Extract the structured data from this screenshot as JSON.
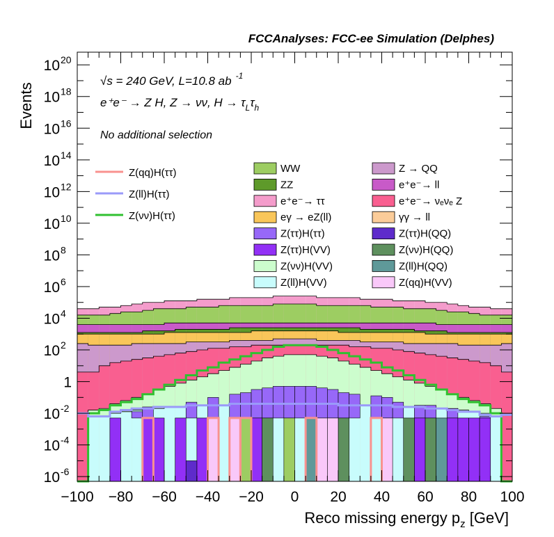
{
  "header": {
    "title": "FCCAnalyses: FCC-ee Simulation (Delphes)",
    "energy": "√s = 240 GeV, L=10.8 ab",
    "lumi_exp": "-1",
    "process": "e⁺e⁻ → Z H, Z → νν, H → τ",
    "process_sub1": "L",
    "process_mid": "τ",
    "process_sub2": "h",
    "selection": "No additional selection"
  },
  "colors": {
    "WW": "#9dcd62",
    "ZZ": "#5e9a2a",
    "ee_tautau": "#f49ccb",
    "egamma_eZll": "#f9c65a",
    "ZtautauHtautau": "#9768f8",
    "ZtautauHVV": "#9230f6",
    "ZnunuHVV": "#ccfdcd",
    "ZllHVV": "#c8fcfc",
    "Z_QQ": "#cc99cc",
    "ee_ll": "#c85ac8",
    "ee_nunuZ": "#f95f90",
    "gammagamma_ll": "#fbcc99",
    "ZtautauHQQ": "#5e2bcb",
    "ZnunuHQQ": "#5e905e",
    "ZllHQQ": "#5f9999",
    "ZqqHVV": "#f9c8f9",
    "sig_qq": "#f9928f",
    "sig_ll": "#9a9af9",
    "sig_nunu": "#30c030"
  },
  "chart_data": {
    "type": "area",
    "title": "FCCAnalyses: FCC-ee Simulation (Delphes)",
    "xlabel": "Reco missing energy p",
    "xlabel_sub": "z",
    "xlabel_unit": " [GeV]",
    "ylabel": "Events",
    "xlim": [
      -100,
      100
    ],
    "ylim_log10": [
      -6.3,
      20.8
    ],
    "y_scale": "log",
    "x_ticks": [
      "−100",
      "−80",
      "−60",
      "−40",
      "−20",
      "0",
      "20",
      "40",
      "60",
      "80",
      "100"
    ],
    "y_ticks": [
      {
        "base": "10",
        "exp": "20",
        "v": 20
      },
      {
        "base": "10",
        "exp": "18",
        "v": 18
      },
      {
        "base": "10",
        "exp": "16",
        "v": 16
      },
      {
        "base": "10",
        "exp": "14",
        "v": 14
      },
      {
        "base": "10",
        "exp": "12",
        "v": 12
      },
      {
        "base": "10",
        "exp": "10",
        "v": 10
      },
      {
        "base": "10",
        "exp": "8",
        "v": 8
      },
      {
        "base": "10",
        "exp": "6",
        "v": 6
      },
      {
        "base": "10",
        "exp": "4",
        "v": 4
      },
      {
        "base": "10",
        "exp": "2",
        "v": 2
      },
      {
        "base": "1",
        "exp": "",
        "v": 0
      },
      {
        "base": "10",
        "exp": "-2",
        "v": -2
      },
      {
        "base": "10",
        "exp": "-4",
        "v": -4
      },
      {
        "base": "10",
        "exp": "-6",
        "v": -6
      }
    ],
    "bin_edges": [
      -100,
      -95,
      -90,
      -85,
      -80,
      -75,
      -70,
      -65,
      -60,
      -55,
      -50,
      -45,
      -40,
      -35,
      -30,
      -25,
      -20,
      -15,
      -10,
      -5,
      0,
      5,
      10,
      15,
      20,
      25,
      30,
      35,
      40,
      45,
      50,
      55,
      60,
      65,
      70,
      75,
      80,
      85,
      90,
      95,
      100
    ],
    "stack_log10": [
      {
        "name": "ZllHVV",
        "color": "#c8fcfc",
        "tops": [
          -6.3,
          -2.2,
          -2.2,
          -2.0,
          -1.9,
          -1.8,
          -1.7,
          -1.7,
          -1.6,
          -1.6,
          -1.6,
          -1.5,
          -1.5,
          -1.5,
          -1.5,
          -1.4,
          -1.4,
          -1.4,
          -1.4,
          -1.4,
          -1.4,
          -1.4,
          -1.4,
          -1.4,
          -1.4,
          -1.4,
          -1.5,
          -1.5,
          -1.5,
          -1.5,
          -1.6,
          -1.6,
          -1.6,
          -1.7,
          -1.7,
          -1.8,
          -1.9,
          -2.0,
          -2.2,
          -6.3
        ]
      },
      {
        "name": "ZnunuHVV",
        "color": "#ccfdcd",
        "tops": [
          -6.3,
          -1.8,
          -1.7,
          -1.4,
          -1.2,
          -1.0,
          -0.8,
          -0.5,
          -0.3,
          -0.1,
          0.1,
          0.3,
          0.5,
          0.7,
          0.9,
          1.1,
          1.3,
          1.5,
          1.6,
          1.7,
          1.7,
          1.7,
          1.6,
          1.5,
          1.3,
          1.1,
          0.9,
          0.7,
          0.5,
          0.3,
          0.1,
          -0.1,
          -0.3,
          -0.5,
          -0.8,
          -1.0,
          -1.2,
          -1.4,
          -1.7,
          -6.3
        ]
      },
      {
        "name": "ee_nunuZ",
        "color": "#f95f90",
        "tops": [
          0.6,
          0.6,
          1.0,
          1.2,
          1.3,
          1.4,
          1.5,
          1.6,
          1.7,
          1.8,
          1.9,
          2.0,
          2.1,
          2.1,
          2.2,
          2.2,
          2.3,
          2.3,
          2.3,
          2.3,
          2.3,
          2.3,
          2.3,
          2.3,
          2.3,
          2.2,
          2.2,
          2.1,
          2.1,
          2.0,
          1.9,
          1.8,
          1.7,
          1.6,
          1.5,
          1.4,
          1.3,
          1.2,
          1.0,
          0.6
        ]
      },
      {
        "name": "Z_QQ",
        "color": "#cc99cc",
        "tops": [
          2.4,
          2.3,
          2.3,
          2.3,
          2.3,
          2.4,
          2.4,
          2.4,
          2.4,
          2.4,
          2.5,
          2.5,
          2.5,
          2.5,
          2.6,
          2.6,
          2.6,
          2.6,
          2.7,
          2.7,
          2.7,
          2.7,
          2.6,
          2.6,
          2.6,
          2.6,
          2.5,
          2.5,
          2.5,
          2.5,
          2.4,
          2.4,
          2.4,
          2.4,
          2.4,
          2.3,
          2.3,
          2.3,
          2.3,
          2.4
        ]
      },
      {
        "name": "egamma_eZll",
        "color": "#f9c65a",
        "tops": [
          3.0,
          3.0,
          3.0,
          3.0,
          3.0,
          3.0,
          3.0,
          3.0,
          3.1,
          3.1,
          3.1,
          3.1,
          3.1,
          3.1,
          3.1,
          3.1,
          3.2,
          3.2,
          3.2,
          3.2,
          3.2,
          3.2,
          3.2,
          3.2,
          3.1,
          3.1,
          3.1,
          3.1,
          3.1,
          3.1,
          3.1,
          3.1,
          3.0,
          3.0,
          3.0,
          3.0,
          3.0,
          3.0,
          3.0,
          3.0
        ]
      },
      {
        "name": "ZZ",
        "color": "#5e9a2a",
        "tops": [
          3.1,
          3.1,
          3.1,
          3.1,
          3.1,
          3.1,
          3.2,
          3.2,
          3.2,
          3.3,
          3.3,
          3.3,
          3.3,
          3.3,
          3.4,
          3.4,
          3.4,
          3.4,
          3.4,
          3.4,
          3.4,
          3.4,
          3.4,
          3.4,
          3.4,
          3.4,
          3.3,
          3.3,
          3.3,
          3.3,
          3.3,
          3.2,
          3.2,
          3.2,
          3.1,
          3.1,
          3.1,
          3.1,
          3.1,
          3.1
        ]
      },
      {
        "name": "ee_ll",
        "color": "#c85ac8",
        "tops": [
          3.6,
          3.6,
          3.6,
          3.6,
          3.6,
          3.6,
          3.6,
          3.6,
          3.7,
          3.7,
          3.7,
          3.7,
          3.7,
          3.7,
          3.7,
          3.7,
          3.7,
          3.7,
          3.7,
          3.7,
          3.7,
          3.7,
          3.7,
          3.7,
          3.7,
          3.7,
          3.7,
          3.7,
          3.7,
          3.7,
          3.7,
          3.7,
          3.7,
          3.6,
          3.6,
          3.6,
          3.6,
          3.6,
          3.6,
          3.6
        ]
      },
      {
        "name": "WW",
        "color": "#9dcd62",
        "tops": [
          4.2,
          4.2,
          4.2,
          4.3,
          4.4,
          4.4,
          4.5,
          4.6,
          4.6,
          4.6,
          4.7,
          4.7,
          4.7,
          4.8,
          4.8,
          4.8,
          4.8,
          4.8,
          4.9,
          4.9,
          4.9,
          4.9,
          4.8,
          4.8,
          4.8,
          4.8,
          4.8,
          4.7,
          4.7,
          4.7,
          4.6,
          4.6,
          4.6,
          4.5,
          4.4,
          4.4,
          4.3,
          4.2,
          4.2,
          4.2
        ]
      },
      {
        "name": "ee_tautau",
        "color": "#f49ccb",
        "tops": [
          4.6,
          4.6,
          4.7,
          4.7,
          4.8,
          4.9,
          5.0,
          5.0,
          5.1,
          5.1,
          5.1,
          5.2,
          5.2,
          5.2,
          5.3,
          5.3,
          5.3,
          5.3,
          5.4,
          5.4,
          5.4,
          5.4,
          5.3,
          5.3,
          5.3,
          5.3,
          5.2,
          5.2,
          5.2,
          5.1,
          5.1,
          5.1,
          5.0,
          5.0,
          4.9,
          4.8,
          4.7,
          4.7,
          4.6,
          4.6
        ]
      }
    ],
    "sparse_bins": [
      {
        "name": "ZtautauHtautau",
        "color": "#9768f8",
        "bins": [
          [
            -85,
            -80,
            -2.3
          ],
          [
            -75,
            -70,
            -1.9
          ],
          [
            -70,
            -65,
            -1.6
          ],
          [
            -50,
            -45,
            -1.3
          ],
          [
            -40,
            -35,
            -1.0
          ],
          [
            -30,
            -25,
            -0.8
          ],
          [
            -25,
            -20,
            -0.7
          ],
          [
            -20,
            -15,
            -0.5
          ],
          [
            -15,
            -10,
            -0.4
          ],
          [
            -10,
            -5,
            -0.3
          ],
          [
            -5,
            0,
            -0.3
          ],
          [
            0,
            5,
            -0.3
          ],
          [
            5,
            10,
            -0.3
          ],
          [
            10,
            15,
            -0.4
          ],
          [
            15,
            20,
            -0.5
          ],
          [
            20,
            25,
            -0.7
          ],
          [
            25,
            30,
            -0.8
          ],
          [
            35,
            40,
            -0.9
          ],
          [
            40,
            45,
            -1.0
          ],
          [
            45,
            50,
            -1.3
          ],
          [
            55,
            60,
            -1.5
          ],
          [
            60,
            65,
            -1.5
          ],
          [
            70,
            75,
            -1.7
          ],
          [
            85,
            90,
            -2.2
          ]
        ]
      },
      {
        "name": "ZtautauHVV",
        "color": "#9230f6",
        "bins": [
          [
            -85,
            -80,
            -6.3
          ],
          [
            -70,
            -65,
            -6.3
          ],
          [
            -65,
            -60,
            -1.9
          ],
          [
            -55,
            -50,
            -2.0
          ],
          [
            -45,
            -40,
            -2.1
          ],
          [
            -40,
            -35,
            -6.3
          ],
          [
            -20,
            -15,
            -6.3
          ],
          [
            55,
            60,
            -6.3
          ],
          [
            70,
            75,
            -6.3
          ],
          [
            75,
            80,
            -6.3
          ],
          [
            80,
            85,
            -3.0
          ],
          [
            85,
            90,
            -6.3
          ]
        ]
      },
      {
        "name": "ZtautauHQQ",
        "color": "#5e2bcb",
        "bins": [
          [
            -50,
            -45,
            -5.0
          ]
        ]
      },
      {
        "name": "ZnunuHQQ",
        "color": "#5e905e",
        "bins": [
          [
            -15,
            -10,
            -6.3
          ],
          [
            15,
            20,
            -6.3
          ],
          [
            20,
            25,
            -6.3
          ],
          [
            50,
            55,
            -6.3
          ],
          [
            60,
            65,
            -6.3
          ]
        ]
      },
      {
        "name": "ZllHQQ",
        "color": "#5f9999",
        "bins": [
          [
            5,
            10,
            -6.3
          ],
          [
            65,
            70,
            -6.3
          ]
        ]
      },
      {
        "name": "ZqqHVV",
        "color": "#f9c8f9",
        "bins": [
          [
            -40,
            -35,
            -6.3
          ],
          [
            -30,
            -25,
            -6.3
          ],
          [
            10,
            15,
            -6.3
          ],
          [
            15,
            20,
            -6.3
          ],
          [
            40,
            45,
            -6.3
          ]
        ]
      },
      {
        "name": "WW_lowbin",
        "color": "#9dcd62",
        "bins": [
          [
            -5,
            0,
            -6.3
          ],
          [
            -25,
            -20,
            -6.3
          ]
        ]
      }
    ],
    "signal_lines": [
      {
        "name": "Z(νν)H(ττ)",
        "color": "#30c030",
        "y_log10": [
          -6.3,
          -2.0,
          -1.8,
          -1.5,
          -1.3,
          -1.1,
          -0.8,
          -0.5,
          -0.2,
          0.1,
          0.4,
          0.7,
          0.9,
          1.2,
          1.4,
          1.6,
          1.8,
          2.0,
          2.2,
          2.3,
          2.3,
          2.3,
          2.2,
          2.0,
          1.8,
          1.6,
          1.4,
          1.2,
          0.9,
          0.7,
          0.4,
          0.1,
          -0.2,
          -0.5,
          -0.8,
          -1.1,
          -1.3,
          -1.5,
          -2.0,
          -6.3
        ]
      },
      {
        "name": "Z(ll)H(ττ)",
        "color": "#9a9af9",
        "y_log10": [
          -2.0,
          -2.2,
          -2.2,
          -1.9,
          -1.8,
          -1.7,
          -1.7,
          -1.6,
          -1.6,
          -1.6,
          -1.5,
          -1.5,
          -1.5,
          -1.5,
          -1.4,
          -1.4,
          -1.4,
          -1.4,
          -1.4,
          -1.4,
          -1.4,
          -1.4,
          -1.4,
          -1.4,
          -1.5,
          -1.5,
          -1.5,
          -1.5,
          -1.5,
          -1.6,
          -1.6,
          -1.6,
          -1.7,
          -1.7,
          -1.8,
          -1.9,
          -1.9,
          -2.1,
          -2.2,
          -2.1
        ]
      },
      {
        "name": "Z(qq)H(ττ)",
        "color": "#f9928f",
        "spikes": [
          [
            -70,
            -65,
            -2.3
          ],
          [
            -40,
            -35,
            -2.3
          ],
          [
            -30,
            -25,
            -2.3
          ],
          [
            -25,
            -20,
            -2.3
          ],
          [
            5,
            10,
            -2.3
          ],
          [
            35,
            40,
            -2.3
          ]
        ]
      }
    ],
    "legend_left": [
      {
        "label": "Z(qq)H(ττ)",
        "color": "#f9928f"
      },
      {
        "label": "Z(ll)H(ττ)",
        "color": "#9a9af9"
      },
      {
        "label": "Z(νν)H(ττ)",
        "color": "#30c030"
      }
    ],
    "legend_mid": [
      {
        "label": "WW",
        "color": "#9dcd62"
      },
      {
        "label": "ZZ",
        "color": "#5e9a2a"
      },
      {
        "label": "e⁺e⁻→ ττ",
        "color": "#f49ccb"
      },
      {
        "label": "eγ → eZ(ll)",
        "color": "#f9c65a"
      },
      {
        "label": "Z(ττ)H(ττ)",
        "color": "#9768f8"
      },
      {
        "label": "Z(ττ)H(VV)",
        "color": "#9230f6"
      },
      {
        "label": "Z(νν)H(VV)",
        "color": "#ccfdcd"
      },
      {
        "label": "Z(ll)H(VV)",
        "color": "#c8fcfc"
      }
    ],
    "legend_right": [
      {
        "label": "Z → QQ",
        "color": "#cc99cc"
      },
      {
        "label": "e⁺e⁻→ ll",
        "color": "#c85ac8"
      },
      {
        "label": "e⁺e⁻→ νₑνₑ Z",
        "color": "#f95f90"
      },
      {
        "label": "γγ → ll",
        "color": "#fbcc99"
      },
      {
        "label": "Z(ττ)H(QQ)",
        "color": "#5e2bcb"
      },
      {
        "label": "Z(νν)H(QQ)",
        "color": "#5e905e"
      },
      {
        "label": "Z(ll)H(QQ)",
        "color": "#5f9999"
      },
      {
        "label": "Z(qq)H(VV)",
        "color": "#f9c8f9"
      }
    ]
  }
}
